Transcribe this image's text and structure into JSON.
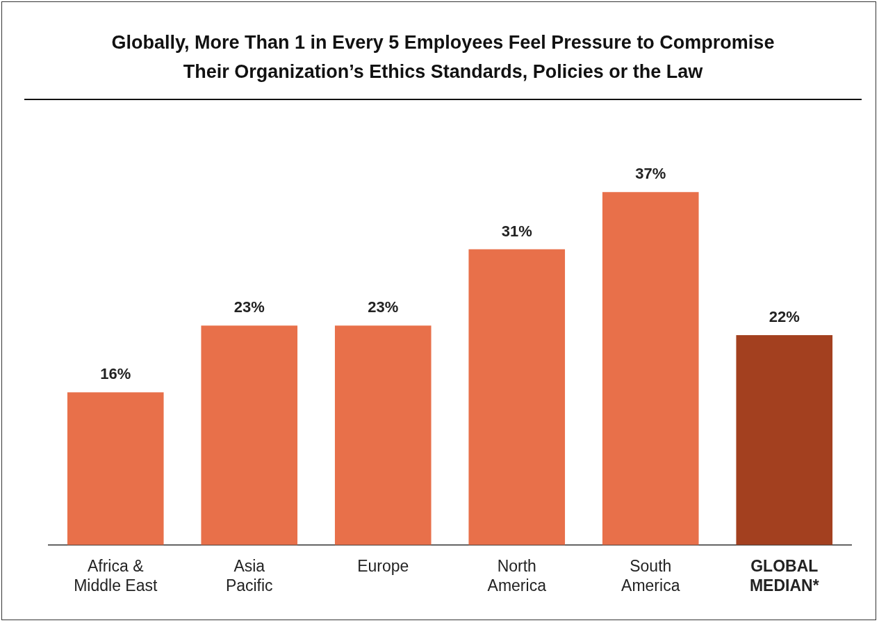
{
  "chart_data": {
    "type": "bar",
    "title": "Globally, More Than 1 in Every 5 Employees Feel Pressure to Compromise Their Organization’s Ethics Standards, Policies or the Law",
    "categories": [
      "Africa & Middle East",
      "Asia Pacific",
      "Europe",
      "North America",
      "South America",
      "GLOBAL MEDIAN*"
    ],
    "values": [
      16,
      23,
      23,
      31,
      37,
      22
    ],
    "colors": [
      "#e8704a",
      "#e8704a",
      "#e8704a",
      "#e8704a",
      "#e8704a",
      "#a3401f"
    ],
    "value_labels": [
      "16%",
      "23%",
      "23%",
      "31%",
      "37%",
      "22%"
    ],
    "grid": false,
    "legend": false
  }
}
